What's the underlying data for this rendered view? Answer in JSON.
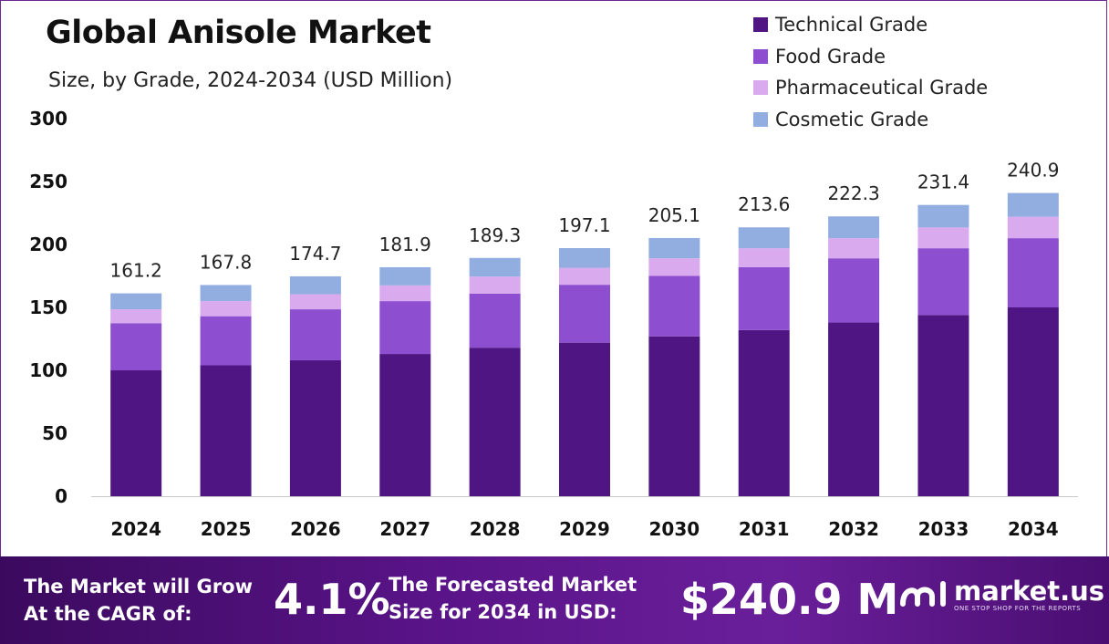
{
  "header": {
    "title": "Global Anisole Market",
    "subtitle": "Size, by Grade, 2024-2034 (USD Million)"
  },
  "legend": [
    {
      "label": "Technical Grade",
      "color": "#4f1582"
    },
    {
      "label": "Food Grade",
      "color": "#8d4fd0"
    },
    {
      "label": "Pharmaceutical Grade",
      "color": "#d9aaee"
    },
    {
      "label": "Cosmetic Grade",
      "color": "#92aee0"
    }
  ],
  "chart_data": {
    "type": "bar",
    "stacked": true,
    "title": "Global Anisole Market",
    "subtitle": "Size, by Grade, 2024-2034 (USD Million)",
    "categories": [
      "2024",
      "2025",
      "2026",
      "2027",
      "2028",
      "2029",
      "2030",
      "2031",
      "2032",
      "2033",
      "2034"
    ],
    "series": [
      {
        "name": "Technical Grade",
        "color": "#4f1582",
        "values": [
          100,
          104,
          108,
          113,
          118,
          122,
          127,
          132,
          138,
          144,
          150
        ]
      },
      {
        "name": "Food Grade",
        "color": "#8d4fd0",
        "values": [
          37.5,
          39,
          40.5,
          42,
          43,
          46,
          48,
          50,
          51,
          53,
          55
        ]
      },
      {
        "name": "Pharmaceutical Grade",
        "color": "#d9aaee",
        "values": [
          11,
          12,
          12,
          12.5,
          13.5,
          13.5,
          14,
          15,
          16,
          16.5,
          17
        ]
      },
      {
        "name": "Cosmetic Grade",
        "color": "#92aee0",
        "values": [
          12.7,
          12.8,
          14.2,
          14.4,
          14.8,
          15.6,
          16.1,
          16.6,
          17.3,
          17.9,
          18.9
        ]
      }
    ],
    "totals": [
      "161.2",
      "167.8",
      "174.7",
      "181.9",
      "189.3",
      "197.1",
      "205.1",
      "213.6",
      "222.3",
      "231.4",
      "240.9"
    ],
    "ylim": [
      0,
      300
    ],
    "yticks": [
      "0",
      "50",
      "100",
      "150",
      "200",
      "250",
      "300"
    ],
    "grid": false,
    "legend_position": "top-right"
  },
  "banner": {
    "cagr_text_line1": "The Market will Grow",
    "cagr_text_line2": "At the CAGR of:",
    "cagr_value": "4.1%",
    "forecast_text_line1": "The Forecasted Market",
    "forecast_text_line2": "Size for 2034 in USD:",
    "forecast_value": "$240.9 M",
    "brand_name": "market.us",
    "brand_tagline": "ONE STOP SHOP FOR THE REPORTS"
  }
}
